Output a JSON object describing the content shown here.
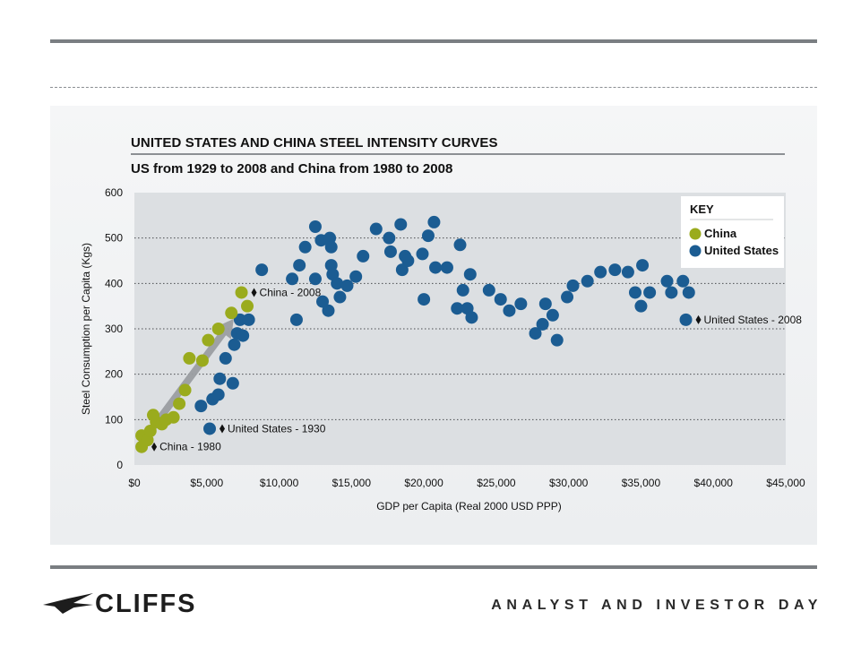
{
  "slide": {
    "logo_text": "CLIFFS",
    "tagline": "ANALYST AND INVESTOR DAY"
  },
  "colors": {
    "china": "#9aab1d",
    "united_states": "#1b5c92",
    "arrow": "#9a9da1",
    "plot_bg": "#dcdfe2"
  },
  "chart_data": {
    "type": "scatter",
    "title": "UNITED STATES AND CHINA STEEL INTENSITY CURVES",
    "subtitle": "US from 1929 to 2008 and China from 1980 to 2008",
    "xlabel": "GDP per Capita (Real 2000 USD PPP)",
    "ylabel": "Steel Consumption per Capita (Kgs)",
    "xlim": [
      0,
      45000
    ],
    "ylim": [
      0,
      600
    ],
    "x_ticks": [
      "$0",
      "$5,000",
      "$10,000",
      "$15,000",
      "$20,000",
      "$25,000",
      "$30,000",
      "$35,000",
      "$40,000",
      "$45,000"
    ],
    "y_ticks": [
      "0",
      "100",
      "200",
      "300",
      "400",
      "500",
      "600"
    ],
    "grid": "horizontal-dotted",
    "legend": {
      "title": "KEY",
      "position": "top-right",
      "entries": [
        "China",
        "United States"
      ]
    },
    "series": [
      {
        "name": "China",
        "points": [
          [
            500,
            40
          ],
          [
            500,
            65
          ],
          [
            900,
            55
          ],
          [
            1100,
            75
          ],
          [
            1300,
            110
          ],
          [
            1500,
            95
          ],
          [
            1900,
            90
          ],
          [
            2200,
            100
          ],
          [
            2700,
            105
          ],
          [
            3100,
            135
          ],
          [
            3500,
            165
          ],
          [
            3800,
            235
          ],
          [
            4700,
            230
          ],
          [
            5100,
            275
          ],
          [
            5800,
            300
          ],
          [
            6700,
            335
          ],
          [
            7400,
            380
          ],
          [
            7800,
            350
          ]
        ]
      },
      {
        "name": "United States",
        "points": [
          [
            4600,
            130
          ],
          [
            5200,
            80
          ],
          [
            5400,
            145
          ],
          [
            5800,
            155
          ],
          [
            5900,
            190
          ],
          [
            6300,
            235
          ],
          [
            6800,
            180
          ],
          [
            6900,
            265
          ],
          [
            7100,
            290
          ],
          [
            7300,
            320
          ],
          [
            7500,
            285
          ],
          [
            7900,
            320
          ],
          [
            8800,
            430
          ],
          [
            10900,
            410
          ],
          [
            11200,
            320
          ],
          [
            11400,
            440
          ],
          [
            11800,
            480
          ],
          [
            12500,
            410
          ],
          [
            12500,
            525
          ],
          [
            12900,
            495
          ],
          [
            13000,
            360
          ],
          [
            13400,
            340
          ],
          [
            13500,
            500
          ],
          [
            13600,
            480
          ],
          [
            13600,
            440
          ],
          [
            13700,
            420
          ],
          [
            14000,
            400
          ],
          [
            14200,
            370
          ],
          [
            14700,
            395
          ],
          [
            15300,
            415
          ],
          [
            15800,
            460
          ],
          [
            16700,
            520
          ],
          [
            17600,
            500
          ],
          [
            17700,
            470
          ],
          [
            18400,
            530
          ],
          [
            18500,
            430
          ],
          [
            18700,
            460
          ],
          [
            18900,
            450
          ],
          [
            19900,
            465
          ],
          [
            20000,
            365
          ],
          [
            20300,
            505
          ],
          [
            20700,
            535
          ],
          [
            20800,
            435
          ],
          [
            21600,
            435
          ],
          [
            22300,
            345
          ],
          [
            22500,
            485
          ],
          [
            22700,
            385
          ],
          [
            23000,
            345
          ],
          [
            23200,
            420
          ],
          [
            23300,
            325
          ],
          [
            24500,
            385
          ],
          [
            25300,
            365
          ],
          [
            25900,
            340
          ],
          [
            26700,
            355
          ],
          [
            27700,
            290
          ],
          [
            28200,
            310
          ],
          [
            28400,
            355
          ],
          [
            28900,
            330
          ],
          [
            29200,
            275
          ],
          [
            29900,
            370
          ],
          [
            30300,
            395
          ],
          [
            31300,
            405
          ],
          [
            32200,
            425
          ],
          [
            33200,
            430
          ],
          [
            34100,
            425
          ],
          [
            34600,
            380
          ],
          [
            35000,
            350
          ],
          [
            35100,
            440
          ],
          [
            35600,
            380
          ],
          [
            36800,
            405
          ],
          [
            37100,
            380
          ],
          [
            37900,
            405
          ],
          [
            38300,
            380
          ],
          [
            38100,
            320
          ]
        ]
      }
    ],
    "annotations": [
      {
        "text": "China - 1980",
        "series": "China",
        "point": [
          500,
          40
        ]
      },
      {
        "text": "China - 2008",
        "series": "China",
        "point": [
          7400,
          380
        ]
      },
      {
        "text": "United States - 1930",
        "series": "United States",
        "point": [
          5200,
          80
        ]
      },
      {
        "text": "United States - 2008",
        "series": "United States",
        "point": [
          38100,
          320
        ]
      }
    ]
  }
}
